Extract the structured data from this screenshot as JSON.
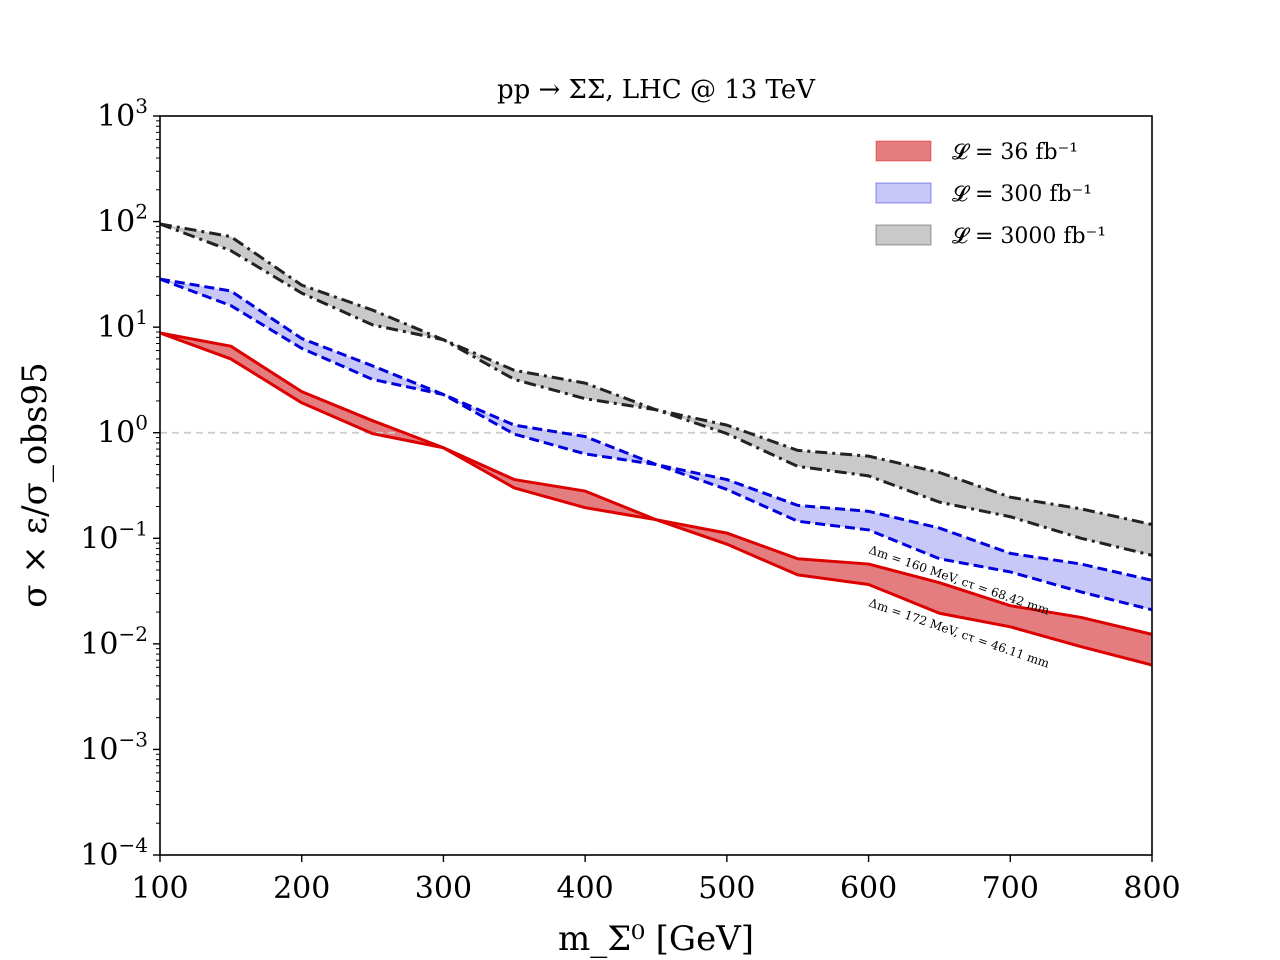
{
  "chart_data": {
    "type": "area",
    "title": "pp → ΣΣ, LHC @ 13 TeV",
    "xlabel": "m_Σ⁰ [GeV]",
    "ylabel": "σ × ε/σ_obs95",
    "xlim": [
      100,
      800
    ],
    "ylim": [
      0.0001,
      1000
    ],
    "yscale": "log",
    "x_ticks": [
      100,
      200,
      300,
      400,
      500,
      600,
      700,
      800
    ],
    "y_ticks": [
      {
        "value": 0.0001,
        "base": "10",
        "exp": "−4"
      },
      {
        "value": 0.001,
        "base": "10",
        "exp": "−3"
      },
      {
        "value": 0.01,
        "base": "10",
        "exp": "−2"
      },
      {
        "value": 0.1,
        "base": "10",
        "exp": "−1"
      },
      {
        "value": 1,
        "base": "10",
        "exp": "0"
      },
      {
        "value": 10,
        "base": "10",
        "exp": "1"
      },
      {
        "value": 100,
        "base": "10",
        "exp": "2"
      },
      {
        "value": 1000,
        "base": "10",
        "exp": "3"
      }
    ],
    "reference_line": {
      "y": 1.0,
      "color": "#cccccc",
      "style": "dashed"
    },
    "x": [
      100,
      150,
      200,
      250,
      300,
      350,
      400,
      450,
      500,
      550,
      600,
      650,
      700,
      750,
      800
    ],
    "series": [
      {
        "name": "𝓛 = 36 fb⁻¹",
        "fill": "#e47d80",
        "line_color": "#dd0000",
        "line_style": "solid",
        "upper": [
          8.8,
          6.6,
          2.45,
          1.3,
          0.72,
          0.36,
          0.28,
          0.15,
          0.112,
          0.064,
          0.057,
          0.038,
          0.023,
          0.0178,
          0.0123
        ],
        "lower": [
          8.8,
          5.0,
          1.92,
          0.98,
          0.72,
          0.3,
          0.195,
          0.15,
          0.088,
          0.045,
          0.0365,
          0.0195,
          0.0145,
          0.0094,
          0.0063
        ]
      },
      {
        "name": "𝓛 = 300 fb⁻¹",
        "fill": "#c7c8f8",
        "line_color": "#0000dd",
        "line_style": "dashed",
        "upper": [
          28.5,
          22.0,
          7.8,
          4.3,
          2.3,
          1.18,
          0.92,
          0.5,
          0.36,
          0.205,
          0.18,
          0.125,
          0.072,
          0.057,
          0.04
        ],
        "lower": [
          28.5,
          16.0,
          6.3,
          3.2,
          2.3,
          0.97,
          0.63,
          0.5,
          0.29,
          0.145,
          0.12,
          0.064,
          0.048,
          0.031,
          0.021
        ]
      },
      {
        "name": "𝓛 = 3000 fb⁻¹",
        "fill": "#c9c9c9",
        "line_color": "#222222",
        "line_style": "dashdot",
        "upper": [
          95.0,
          72.0,
          25.0,
          14.5,
          7.6,
          3.9,
          2.95,
          1.65,
          1.18,
          0.68,
          0.6,
          0.42,
          0.245,
          0.19,
          0.135
        ],
        "lower": [
          95.0,
          53.0,
          21.0,
          10.5,
          7.6,
          3.2,
          2.1,
          1.65,
          0.98,
          0.48,
          0.39,
          0.22,
          0.16,
          0.1,
          0.069
        ]
      }
    ],
    "legend_location": "top-right",
    "annotations": [
      {
        "text": "Δm = 160 MeV, cτ = 68.42 mm"
      },
      {
        "text": "Δm = 172 MeV, cτ = 46.11 mm"
      }
    ]
  }
}
